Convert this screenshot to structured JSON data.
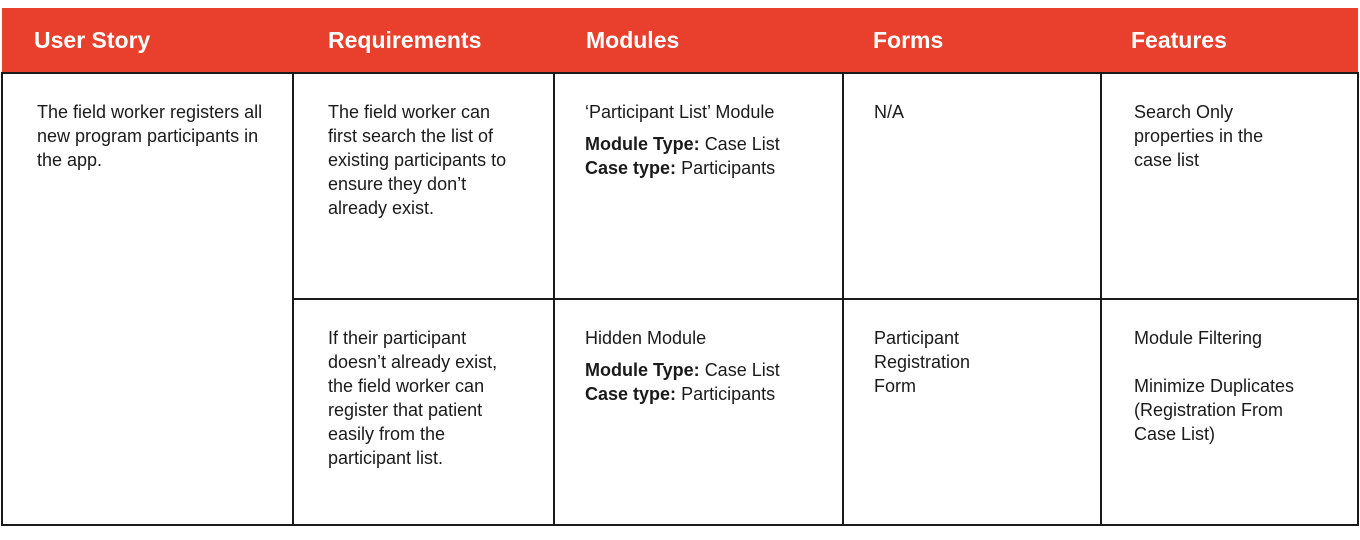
{
  "table": {
    "headers": [
      "User Story",
      "Requirements",
      "Modules",
      "Forms",
      "Features"
    ],
    "user_story": "The field worker registers all new program participants in the app.",
    "rows": [
      {
        "requirement": "The field worker can first search the list of existing participants to ensure they don’t already exist.",
        "module_name": "‘Participant List’ Module",
        "module_type_label": "Module Type:",
        "module_type_value": "Case List",
        "case_type_label": "Case type:",
        "case_type_value": "Participants",
        "form": "N/A",
        "features": [
          "Search Only properties in the case list"
        ]
      },
      {
        "requirement": "If their participant doesn’t already exist, the field worker can register that patient easily from the participant list.",
        "module_name": "Hidden Module",
        "module_type_label": "Module Type:",
        "module_type_value": "Case List",
        "case_type_label": "Case type:",
        "case_type_value": "Participants",
        "form": "Participant Registration Form",
        "features": [
          "Module Filtering",
          "Minimize Duplicates (Registration From Case List)"
        ]
      }
    ]
  }
}
